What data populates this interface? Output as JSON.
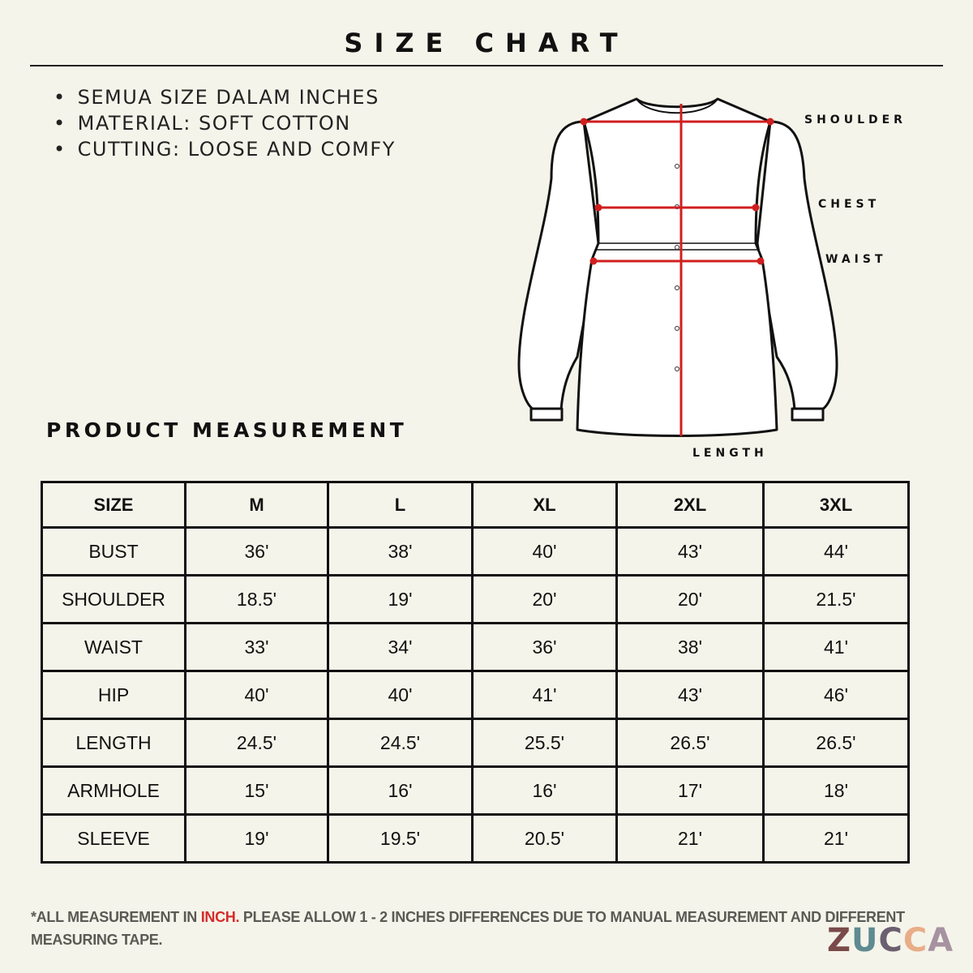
{
  "title": "SIZE CHART",
  "notes": [
    "SEMUA SIZE DALAM INCHES",
    "MATERIAL: SOFT COTTON",
    "CUTTING: LOOSE AND COMFY"
  ],
  "diagram_labels": {
    "shoulder": "SHOULDER",
    "chest": "CHEST",
    "waist": "WAIST",
    "length": "LENGTH"
  },
  "section_title": "PRODUCT MEASUREMENT",
  "table": {
    "headers": [
      "SIZE",
      "M",
      "L",
      "XL",
      "2XL",
      "3XL"
    ],
    "rows": [
      [
        "BUST",
        "36'",
        "38'",
        "40'",
        "43'",
        "44'"
      ],
      [
        "SHOULDER",
        "18.5'",
        "19'",
        "20'",
        "20'",
        "21.5'"
      ],
      [
        "WAIST",
        "33'",
        "34'",
        "36'",
        "38'",
        "41'"
      ],
      [
        "HIP",
        "40'",
        "40'",
        "41'",
        "43'",
        "46'"
      ],
      [
        "LENGTH",
        "24.5'",
        "24.5'",
        "25.5'",
        "26.5'",
        "26.5'"
      ],
      [
        "ARMHOLE",
        "15'",
        "16'",
        "16'",
        "17'",
        "18'"
      ],
      [
        "SLEEVE",
        "19'",
        "19.5'",
        "20.5'",
        "21'",
        "21'"
      ]
    ]
  },
  "footer": {
    "part1": "*ALL MEASUREMENT IN ",
    "highlight": "INCH.",
    "part2": " PLEASE ALLOW 1 - 2 INCHES DIFFERENCES DUE TO MANUAL MEASUREMENT AND DIFFERENT MEASURING TAPE."
  },
  "logo": {
    "text": "ZUCCA",
    "letters": [
      "Z",
      "U",
      "C",
      "C",
      "A"
    ],
    "colors": [
      "#7a4a4a",
      "#5e8a91",
      "#6b5f70",
      "#e8ad88",
      "#a692a0"
    ]
  },
  "colors": {
    "background": "#f5f4ea",
    "measure_line": "#d01f1f",
    "highlight": "#d52b2b"
  }
}
